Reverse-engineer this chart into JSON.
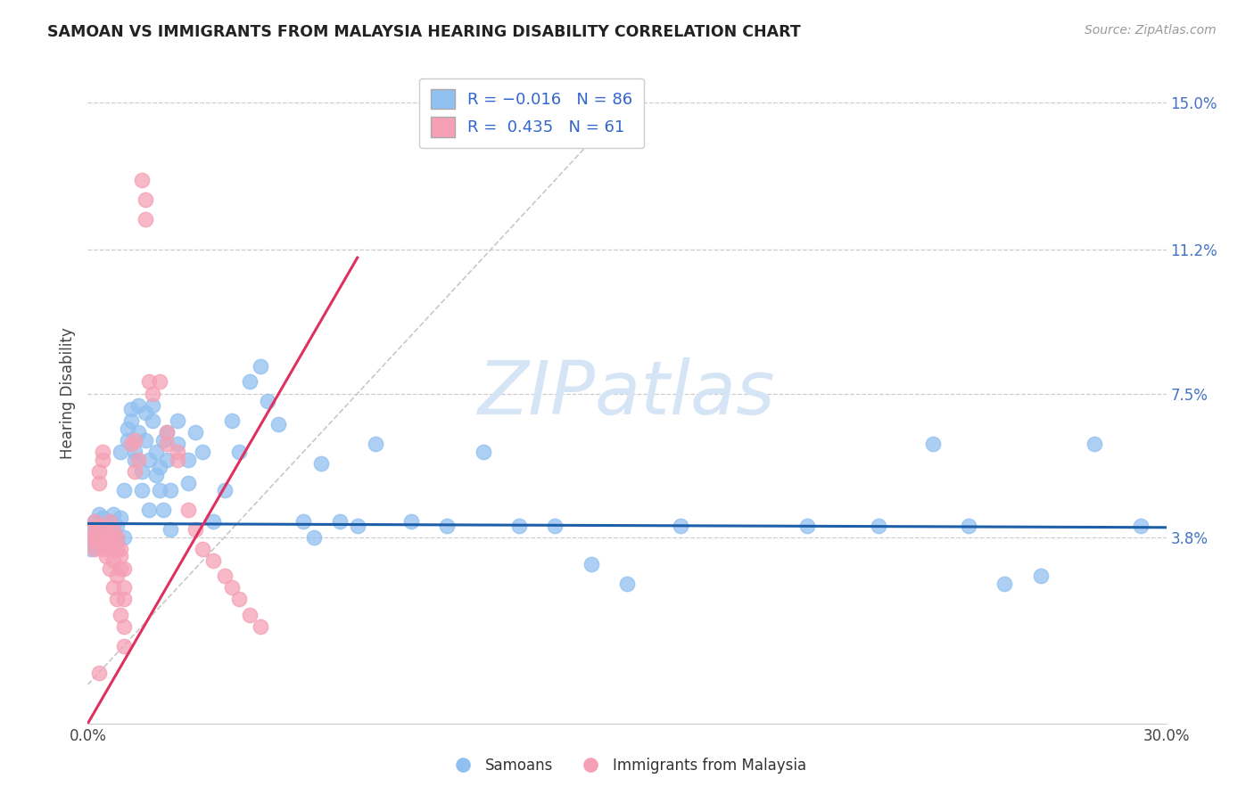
{
  "title": "SAMOAN VS IMMIGRANTS FROM MALAYSIA HEARING DISABILITY CORRELATION CHART",
  "source": "Source: ZipAtlas.com",
  "ylabel": "Hearing Disability",
  "xlim": [
    0.0,
    0.3
  ],
  "ylim": [
    -0.01,
    0.16
  ],
  "xticks": [
    0.0,
    0.05,
    0.1,
    0.15,
    0.2,
    0.25,
    0.3
  ],
  "ytick_positions": [
    0.038,
    0.075,
    0.112,
    0.15
  ],
  "ytick_labels": [
    "3.8%",
    "7.5%",
    "11.2%",
    "15.0%"
  ],
  "grid_color": "#cccccc",
  "blue_color": "#90C0F0",
  "pink_color": "#F5A0B5",
  "blue_line_color": "#1E5FAA",
  "pink_line_color": "#E03060",
  "trendline_gray_color": "#C8C8C8",
  "watermark_color": "#D5E5F5",
  "R_blue": -0.016,
  "N_blue": 86,
  "R_pink": 0.435,
  "N_pink": 61,
  "legend_label_blue": "Samoans",
  "legend_label_pink": "Immigrants from Malaysia",
  "blue_trendline": [
    [
      0.0,
      0.0415
    ],
    [
      0.3,
      0.0405
    ]
  ],
  "pink_trendline": [
    [
      0.0,
      -0.01
    ],
    [
      0.075,
      0.11
    ]
  ],
  "gray_trendline": [
    [
      0.0,
      0.0
    ],
    [
      0.155,
      0.155
    ]
  ],
  "blue_points": [
    [
      0.001,
      0.038
    ],
    [
      0.001,
      0.035
    ],
    [
      0.002,
      0.04
    ],
    [
      0.002,
      0.042
    ],
    [
      0.002,
      0.036
    ],
    [
      0.003,
      0.041
    ],
    [
      0.003,
      0.038
    ],
    [
      0.003,
      0.044
    ],
    [
      0.004,
      0.04
    ],
    [
      0.004,
      0.037
    ],
    [
      0.004,
      0.043
    ],
    [
      0.005,
      0.039
    ],
    [
      0.005,
      0.041
    ],
    [
      0.005,
      0.036
    ],
    [
      0.006,
      0.042
    ],
    [
      0.006,
      0.038
    ],
    [
      0.007,
      0.04
    ],
    [
      0.007,
      0.044
    ],
    [
      0.008,
      0.041
    ],
    [
      0.008,
      0.037
    ],
    [
      0.009,
      0.06
    ],
    [
      0.009,
      0.043
    ],
    [
      0.01,
      0.038
    ],
    [
      0.01,
      0.05
    ],
    [
      0.011,
      0.066
    ],
    [
      0.011,
      0.063
    ],
    [
      0.012,
      0.071
    ],
    [
      0.012,
      0.068
    ],
    [
      0.013,
      0.06
    ],
    [
      0.013,
      0.058
    ],
    [
      0.014,
      0.065
    ],
    [
      0.014,
      0.072
    ],
    [
      0.015,
      0.055
    ],
    [
      0.015,
      0.05
    ],
    [
      0.016,
      0.063
    ],
    [
      0.016,
      0.07
    ],
    [
      0.017,
      0.058
    ],
    [
      0.017,
      0.045
    ],
    [
      0.018,
      0.068
    ],
    [
      0.018,
      0.072
    ],
    [
      0.019,
      0.054
    ],
    [
      0.019,
      0.06
    ],
    [
      0.02,
      0.05
    ],
    [
      0.02,
      0.056
    ],
    [
      0.021,
      0.063
    ],
    [
      0.021,
      0.045
    ],
    [
      0.022,
      0.058
    ],
    [
      0.022,
      0.065
    ],
    [
      0.023,
      0.04
    ],
    [
      0.023,
      0.05
    ],
    [
      0.025,
      0.068
    ],
    [
      0.025,
      0.062
    ],
    [
      0.028,
      0.058
    ],
    [
      0.028,
      0.052
    ],
    [
      0.03,
      0.065
    ],
    [
      0.032,
      0.06
    ],
    [
      0.035,
      0.042
    ],
    [
      0.038,
      0.05
    ],
    [
      0.04,
      0.068
    ],
    [
      0.042,
      0.06
    ],
    [
      0.045,
      0.078
    ],
    [
      0.048,
      0.082
    ],
    [
      0.05,
      0.073
    ],
    [
      0.053,
      0.067
    ],
    [
      0.06,
      0.042
    ],
    [
      0.063,
      0.038
    ],
    [
      0.065,
      0.057
    ],
    [
      0.07,
      0.042
    ],
    [
      0.075,
      0.041
    ],
    [
      0.08,
      0.062
    ],
    [
      0.09,
      0.042
    ],
    [
      0.1,
      0.041
    ],
    [
      0.11,
      0.06
    ],
    [
      0.12,
      0.041
    ],
    [
      0.13,
      0.041
    ],
    [
      0.14,
      0.031
    ],
    [
      0.15,
      0.026
    ],
    [
      0.165,
      0.041
    ],
    [
      0.2,
      0.041
    ],
    [
      0.22,
      0.041
    ],
    [
      0.235,
      0.062
    ],
    [
      0.245,
      0.041
    ],
    [
      0.255,
      0.026
    ],
    [
      0.265,
      0.028
    ],
    [
      0.28,
      0.062
    ],
    [
      0.293,
      0.041
    ]
  ],
  "pink_points": [
    [
      0.001,
      0.038
    ],
    [
      0.001,
      0.04
    ],
    [
      0.002,
      0.035
    ],
    [
      0.002,
      0.042
    ],
    [
      0.002,
      0.037
    ],
    [
      0.003,
      0.041
    ],
    [
      0.003,
      0.038
    ],
    [
      0.003,
      0.055
    ],
    [
      0.003,
      0.052
    ],
    [
      0.004,
      0.06
    ],
    [
      0.004,
      0.058
    ],
    [
      0.004,
      0.035
    ],
    [
      0.005,
      0.038
    ],
    [
      0.005,
      0.04
    ],
    [
      0.005,
      0.036
    ],
    [
      0.005,
      0.033
    ],
    [
      0.006,
      0.037
    ],
    [
      0.006,
      0.035
    ],
    [
      0.006,
      0.042
    ],
    [
      0.006,
      0.03
    ],
    [
      0.007,
      0.038
    ],
    [
      0.007,
      0.04
    ],
    [
      0.007,
      0.032
    ],
    [
      0.007,
      0.025
    ],
    [
      0.008,
      0.035
    ],
    [
      0.008,
      0.038
    ],
    [
      0.008,
      0.028
    ],
    [
      0.008,
      0.022
    ],
    [
      0.009,
      0.033
    ],
    [
      0.009,
      0.03
    ],
    [
      0.009,
      0.035
    ],
    [
      0.009,
      0.018
    ],
    [
      0.01,
      0.03
    ],
    [
      0.01,
      0.022
    ],
    [
      0.01,
      0.025
    ],
    [
      0.01,
      0.015
    ],
    [
      0.012,
      0.062
    ],
    [
      0.013,
      0.063
    ],
    [
      0.013,
      0.055
    ],
    [
      0.014,
      0.058
    ],
    [
      0.015,
      0.13
    ],
    [
      0.016,
      0.12
    ],
    [
      0.016,
      0.125
    ],
    [
      0.017,
      0.078
    ],
    [
      0.018,
      0.075
    ],
    [
      0.02,
      0.078
    ],
    [
      0.022,
      0.065
    ],
    [
      0.022,
      0.062
    ],
    [
      0.025,
      0.06
    ],
    [
      0.025,
      0.058
    ],
    [
      0.028,
      0.045
    ],
    [
      0.03,
      0.04
    ],
    [
      0.032,
      0.035
    ],
    [
      0.035,
      0.032
    ],
    [
      0.038,
      0.028
    ],
    [
      0.04,
      0.025
    ],
    [
      0.042,
      0.022
    ],
    [
      0.045,
      0.018
    ],
    [
      0.048,
      0.015
    ],
    [
      0.01,
      0.01
    ],
    [
      0.003,
      0.003
    ]
  ]
}
